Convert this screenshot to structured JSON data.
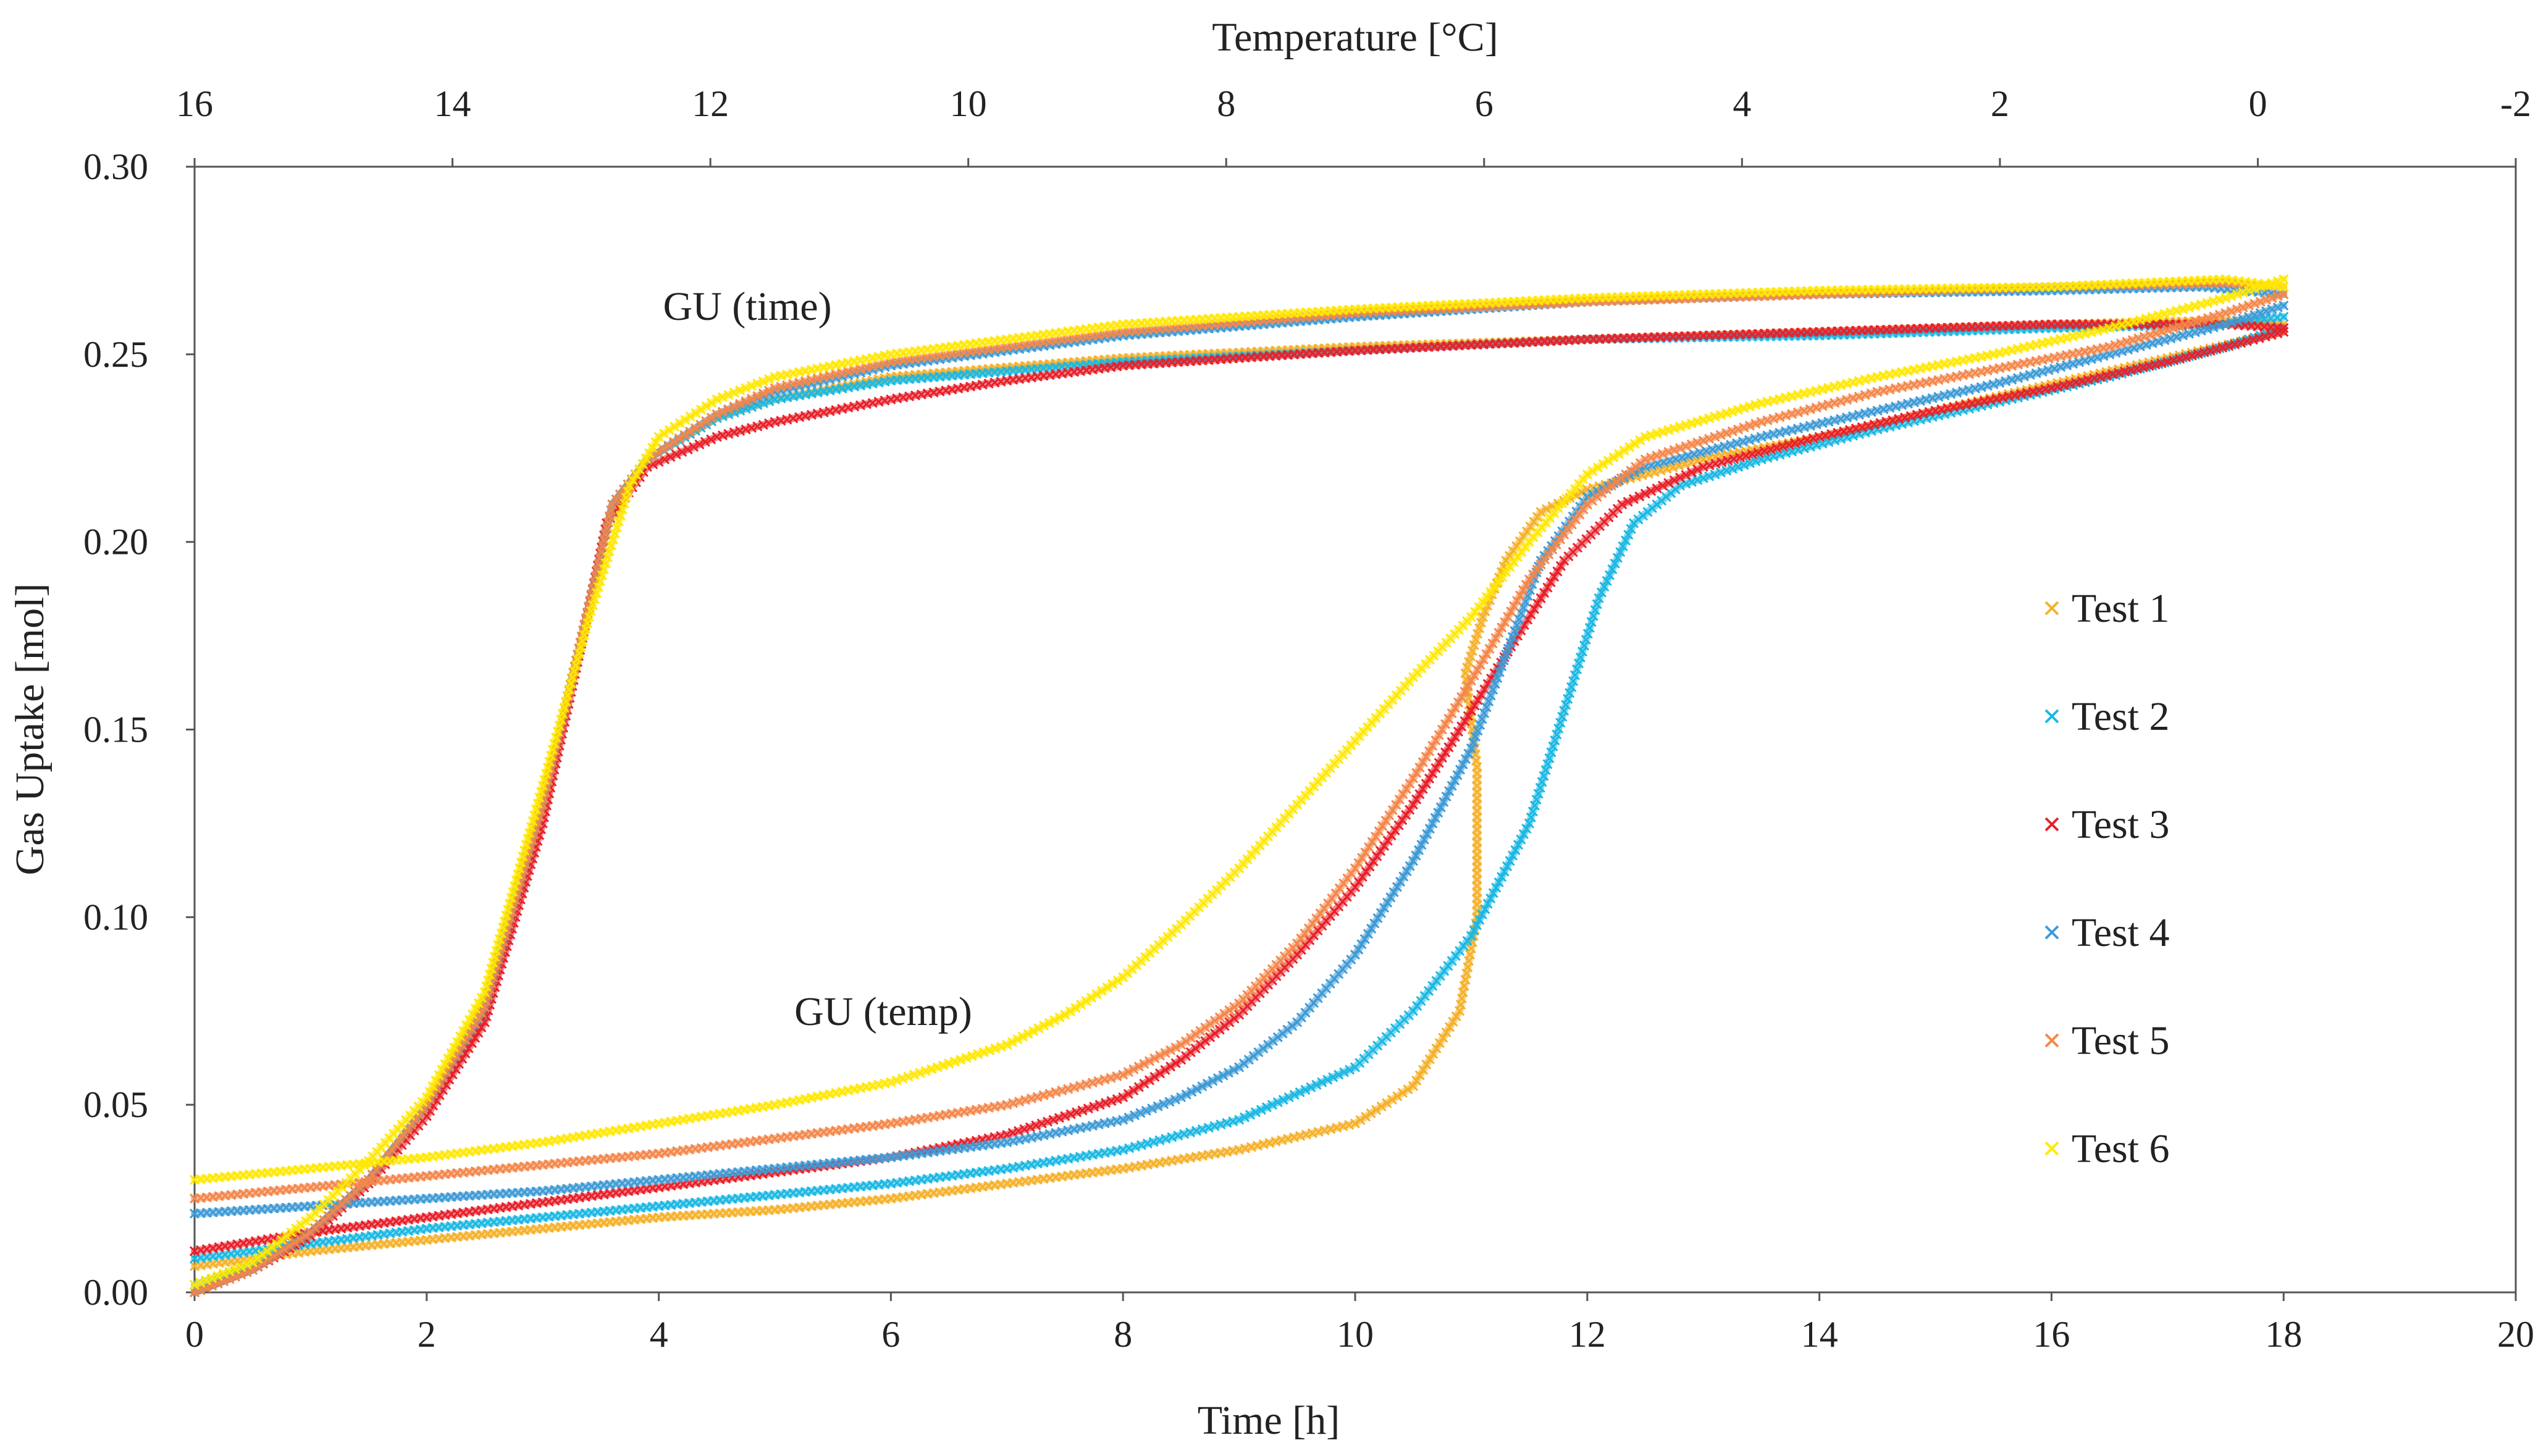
{
  "chart_data": {
    "type": "scatter",
    "title": "",
    "xlabel": "Time [h]",
    "x2label": "Temperature [°C]",
    "ylabel": "Gas Uptake [mol]",
    "xlim": [
      0,
      20
    ],
    "x2lim": [
      16,
      -2
    ],
    "ylim": [
      0,
      0.3
    ],
    "x_ticks": [
      0,
      2,
      4,
      6,
      8,
      10,
      12,
      14,
      16,
      18,
      20
    ],
    "x2_ticks": [
      16,
      14,
      12,
      10,
      8,
      6,
      4,
      2,
      0,
      -2
    ],
    "y_ticks": [
      "0.00",
      "0.05",
      "0.10",
      "0.15",
      "0.20",
      "0.25",
      "0.30"
    ],
    "grid": false,
    "legend_position": "right",
    "annotations": [
      {
        "text": "GU (time)",
        "x": 4.8,
        "y": 0.26
      },
      {
        "text": "GU (temp)",
        "x": 6.4,
        "y": 0.074
      }
    ],
    "series": [
      {
        "name": "Test 1",
        "color": "#F5B12A",
        "time_curve": [
          [
            0,
            0
          ],
          [
            0.5,
            0.006
          ],
          [
            1,
            0.016
          ],
          [
            1.5,
            0.03
          ],
          [
            2,
            0.05
          ],
          [
            2.5,
            0.078
          ],
          [
            3,
            0.13
          ],
          [
            3.3,
            0.17
          ],
          [
            3.6,
            0.21
          ],
          [
            3.9,
            0.222
          ],
          [
            4.5,
            0.233
          ],
          [
            5,
            0.238
          ],
          [
            6,
            0.244
          ],
          [
            8,
            0.249
          ],
          [
            10,
            0.252
          ],
          [
            12,
            0.254
          ],
          [
            14,
            0.256
          ],
          [
            16,
            0.258
          ],
          [
            17.5,
            0.259
          ],
          [
            18,
            0.258
          ]
        ],
        "temp_curve": [
          [
            0,
            0.007
          ],
          [
            1,
            0.011
          ],
          [
            2,
            0.014
          ],
          [
            3,
            0.017
          ],
          [
            4,
            0.02
          ],
          [
            5,
            0.022
          ],
          [
            6,
            0.025
          ],
          [
            7,
            0.029
          ],
          [
            8,
            0.033
          ],
          [
            9,
            0.038
          ],
          [
            10,
            0.045
          ],
          [
            10.5,
            0.055
          ],
          [
            10.9,
            0.075
          ],
          [
            11.05,
            0.1
          ],
          [
            11.05,
            0.14
          ],
          [
            10.95,
            0.165
          ],
          [
            11.1,
            0.18
          ],
          [
            11.3,
            0.195
          ],
          [
            11.6,
            0.208
          ],
          [
            12,
            0.214
          ],
          [
            13,
            0.222
          ],
          [
            14,
            0.228
          ],
          [
            15,
            0.235
          ],
          [
            16,
            0.242
          ],
          [
            17,
            0.249
          ],
          [
            18,
            0.256
          ]
        ]
      },
      {
        "name": "Test 2",
        "color": "#1BB8E3",
        "time_curve": [
          [
            0,
            0.002
          ],
          [
            0.5,
            0.007
          ],
          [
            1,
            0.016
          ],
          [
            1.5,
            0.03
          ],
          [
            2,
            0.05
          ],
          [
            2.5,
            0.075
          ],
          [
            3,
            0.13
          ],
          [
            3.3,
            0.17
          ],
          [
            3.6,
            0.21
          ],
          [
            3.9,
            0.222
          ],
          [
            4.5,
            0.233
          ],
          [
            5,
            0.238
          ],
          [
            6,
            0.243
          ],
          [
            8,
            0.248
          ],
          [
            10,
            0.251
          ],
          [
            12,
            0.254
          ],
          [
            14,
            0.255
          ],
          [
            16,
            0.257
          ],
          [
            17.5,
            0.258
          ],
          [
            18,
            0.26
          ]
        ],
        "temp_curve": [
          [
            0,
            0.009
          ],
          [
            1,
            0.013
          ],
          [
            2,
            0.017
          ],
          [
            3,
            0.02
          ],
          [
            4,
            0.023
          ],
          [
            5,
            0.026
          ],
          [
            6,
            0.029
          ],
          [
            7,
            0.033
          ],
          [
            8,
            0.038
          ],
          [
            9,
            0.046
          ],
          [
            10,
            0.06
          ],
          [
            10.5,
            0.075
          ],
          [
            11,
            0.095
          ],
          [
            11.5,
            0.125
          ],
          [
            11.8,
            0.155
          ],
          [
            12.1,
            0.185
          ],
          [
            12.4,
            0.205
          ],
          [
            12.8,
            0.215
          ],
          [
            13.5,
            0.222
          ],
          [
            14.5,
            0.23
          ],
          [
            15.5,
            0.237
          ],
          [
            16.5,
            0.244
          ],
          [
            17.5,
            0.252
          ],
          [
            18,
            0.257
          ]
        ]
      },
      {
        "name": "Test 3",
        "color": "#E8202A",
        "time_curve": [
          [
            0,
            0
          ],
          [
            0.5,
            0.006
          ],
          [
            1,
            0.015
          ],
          [
            1.5,
            0.029
          ],
          [
            2,
            0.047
          ],
          [
            2.5,
            0.072
          ],
          [
            3,
            0.125
          ],
          [
            3.3,
            0.168
          ],
          [
            3.55,
            0.205
          ],
          [
            3.9,
            0.22
          ],
          [
            4.5,
            0.228
          ],
          [
            5,
            0.232
          ],
          [
            6,
            0.238
          ],
          [
            7,
            0.243
          ],
          [
            8,
            0.247
          ],
          [
            10,
            0.251
          ],
          [
            12,
            0.254
          ],
          [
            14,
            0.256
          ],
          [
            16,
            0.258
          ],
          [
            17.5,
            0.258
          ],
          [
            18,
            0.257
          ]
        ],
        "temp_curve": [
          [
            0,
            0.011
          ],
          [
            1,
            0.016
          ],
          [
            2,
            0.02
          ],
          [
            3,
            0.024
          ],
          [
            4,
            0.028
          ],
          [
            5,
            0.032
          ],
          [
            6,
            0.036
          ],
          [
            7,
            0.042
          ],
          [
            8,
            0.052
          ],
          [
            8.5,
            0.062
          ],
          [
            9,
            0.074
          ],
          [
            9.5,
            0.09
          ],
          [
            10,
            0.108
          ],
          [
            10.5,
            0.13
          ],
          [
            11,
            0.155
          ],
          [
            11.4,
            0.175
          ],
          [
            11.8,
            0.195
          ],
          [
            12.3,
            0.21
          ],
          [
            13,
            0.22
          ],
          [
            14,
            0.228
          ],
          [
            15,
            0.235
          ],
          [
            16,
            0.241
          ],
          [
            17,
            0.248
          ],
          [
            18,
            0.256
          ]
        ]
      },
      {
        "name": "Test 4",
        "color": "#3E9BD6",
        "time_curve": [
          [
            0,
            0
          ],
          [
            0.5,
            0.006
          ],
          [
            1,
            0.016
          ],
          [
            1.5,
            0.03
          ],
          [
            2,
            0.05
          ],
          [
            2.5,
            0.076
          ],
          [
            3,
            0.13
          ],
          [
            3.3,
            0.17
          ],
          [
            3.6,
            0.21
          ],
          [
            3.9,
            0.222
          ],
          [
            4.5,
            0.234
          ],
          [
            5,
            0.24
          ],
          [
            6,
            0.247
          ],
          [
            8,
            0.255
          ],
          [
            10,
            0.26
          ],
          [
            12,
            0.264
          ],
          [
            14,
            0.266
          ],
          [
            16,
            0.267
          ],
          [
            17.3,
            0.268
          ],
          [
            18,
            0.266
          ]
        ],
        "temp_curve": [
          [
            0,
            0.021
          ],
          [
            1,
            0.023
          ],
          [
            2,
            0.025
          ],
          [
            3,
            0.027
          ],
          [
            4,
            0.03
          ],
          [
            5,
            0.033
          ],
          [
            6,
            0.036
          ],
          [
            7,
            0.04
          ],
          [
            8,
            0.046
          ],
          [
            8.5,
            0.052
          ],
          [
            9,
            0.06
          ],
          [
            9.5,
            0.072
          ],
          [
            10,
            0.09
          ],
          [
            10.5,
            0.115
          ],
          [
            11,
            0.145
          ],
          [
            11.3,
            0.17
          ],
          [
            11.6,
            0.195
          ],
          [
            12,
            0.212
          ],
          [
            12.5,
            0.22
          ],
          [
            13.5,
            0.228
          ],
          [
            14.5,
            0.235
          ],
          [
            15.5,
            0.242
          ],
          [
            16.5,
            0.25
          ],
          [
            17.5,
            0.258
          ],
          [
            18,
            0.263
          ]
        ]
      },
      {
        "name": "Test 5",
        "color": "#F4874B",
        "time_curve": [
          [
            0,
            0
          ],
          [
            0.5,
            0.006
          ],
          [
            1,
            0.016
          ],
          [
            1.5,
            0.03
          ],
          [
            2,
            0.05
          ],
          [
            2.5,
            0.076
          ],
          [
            3,
            0.13
          ],
          [
            3.3,
            0.17
          ],
          [
            3.6,
            0.21
          ],
          [
            3.9,
            0.222
          ],
          [
            4.5,
            0.234
          ],
          [
            5,
            0.241
          ],
          [
            6,
            0.248
          ],
          [
            8,
            0.256
          ],
          [
            10,
            0.261
          ],
          [
            12,
            0.264
          ],
          [
            14,
            0.266
          ],
          [
            16,
            0.268
          ],
          [
            17.5,
            0.269
          ],
          [
            18,
            0.268
          ]
        ],
        "temp_curve": [
          [
            0,
            0.025
          ],
          [
            1,
            0.028
          ],
          [
            2,
            0.031
          ],
          [
            3,
            0.034
          ],
          [
            4,
            0.037
          ],
          [
            5,
            0.041
          ],
          [
            6,
            0.045
          ],
          [
            7,
            0.05
          ],
          [
            8,
            0.058
          ],
          [
            8.5,
            0.066
          ],
          [
            9,
            0.077
          ],
          [
            9.5,
            0.093
          ],
          [
            10,
            0.113
          ],
          [
            10.5,
            0.137
          ],
          [
            11,
            0.163
          ],
          [
            11.5,
            0.19
          ],
          [
            12,
            0.21
          ],
          [
            12.5,
            0.222
          ],
          [
            13.5,
            0.232
          ],
          [
            14.5,
            0.24
          ],
          [
            15.5,
            0.246
          ],
          [
            16.5,
            0.252
          ],
          [
            17.5,
            0.261
          ],
          [
            18,
            0.266
          ]
        ]
      },
      {
        "name": "Test 6",
        "color": "#FFE800",
        "time_curve": [
          [
            0,
            0.002
          ],
          [
            0.5,
            0.008
          ],
          [
            1,
            0.02
          ],
          [
            1.5,
            0.035
          ],
          [
            2,
            0.052
          ],
          [
            2.5,
            0.08
          ],
          [
            3,
            0.135
          ],
          [
            3.4,
            0.18
          ],
          [
            3.75,
            0.215
          ],
          [
            4,
            0.228
          ],
          [
            4.5,
            0.238
          ],
          [
            5,
            0.244
          ],
          [
            6,
            0.25
          ],
          [
            8,
            0.258
          ],
          [
            10,
            0.262
          ],
          [
            12,
            0.265
          ],
          [
            14,
            0.267
          ],
          [
            16,
            0.268
          ],
          [
            17.5,
            0.27
          ],
          [
            18,
            0.268
          ]
        ],
        "temp_curve": [
          [
            0,
            0.03
          ],
          [
            1,
            0.033
          ],
          [
            2,
            0.036
          ],
          [
            3,
            0.04
          ],
          [
            4,
            0.045
          ],
          [
            5,
            0.05
          ],
          [
            6,
            0.056
          ],
          [
            7,
            0.066
          ],
          [
            7.5,
            0.074
          ],
          [
            8,
            0.084
          ],
          [
            8.5,
            0.098
          ],
          [
            9,
            0.113
          ],
          [
            9.5,
            0.13
          ],
          [
            10,
            0.147
          ],
          [
            10.5,
            0.164
          ],
          [
            11,
            0.18
          ],
          [
            11.5,
            0.2
          ],
          [
            12,
            0.218
          ],
          [
            12.5,
            0.228
          ],
          [
            13.5,
            0.237
          ],
          [
            14.5,
            0.244
          ],
          [
            15.5,
            0.25
          ],
          [
            16.5,
            0.257
          ],
          [
            17.5,
            0.265
          ],
          [
            18,
            0.27
          ]
        ]
      }
    ]
  }
}
